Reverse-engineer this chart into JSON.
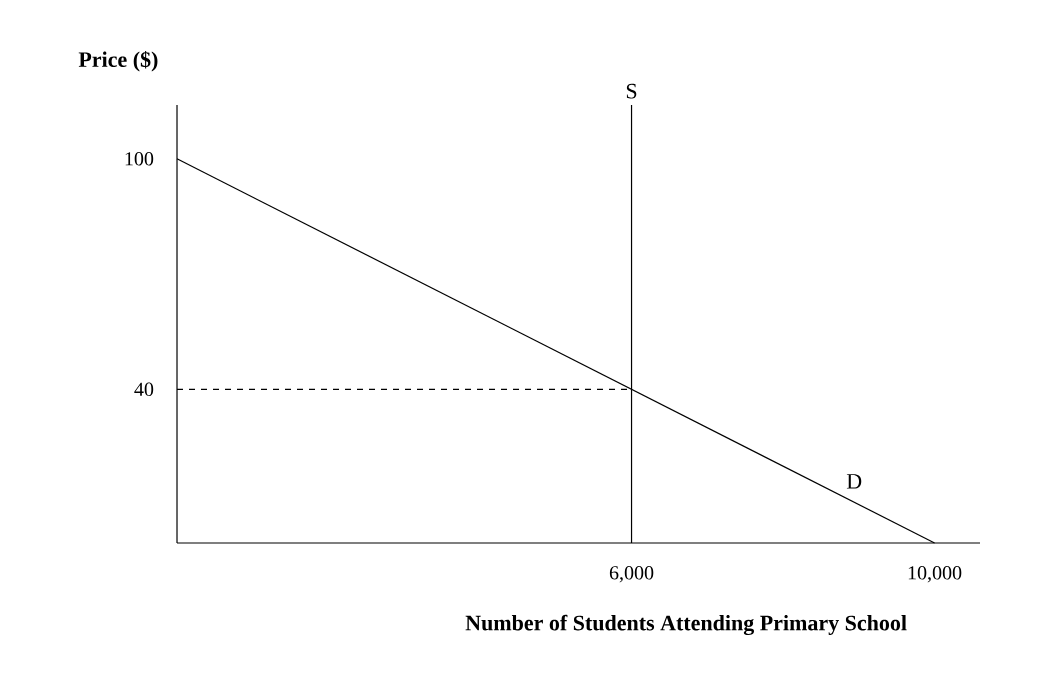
{
  "chart_data": {
    "type": "line",
    "xlabel": "Number of Students Attending Primary School",
    "ylabel": "Price ($)",
    "xlim": [
      0,
      10600
    ],
    "ylim": [
      0,
      114
    ],
    "xticks": [
      {
        "value": 6000,
        "label": "6,000"
      },
      {
        "value": 10000,
        "label": "10,000"
      }
    ],
    "yticks": [
      40,
      100
    ],
    "marker": "none",
    "grid": false,
    "series": [
      {
        "name": "D",
        "color": "#000000",
        "x": [
          0,
          10000
        ],
        "values": [
          100,
          0
        ]
      },
      {
        "name": "S",
        "color": "#000000",
        "x": [
          6000,
          6000
        ],
        "values": [
          0,
          114
        ]
      },
      {
        "color": "#000000",
        "x": [
          0,
          6000
        ],
        "values": [
          40,
          40
        ],
        "line_style": "dashed"
      }
    ]
  }
}
